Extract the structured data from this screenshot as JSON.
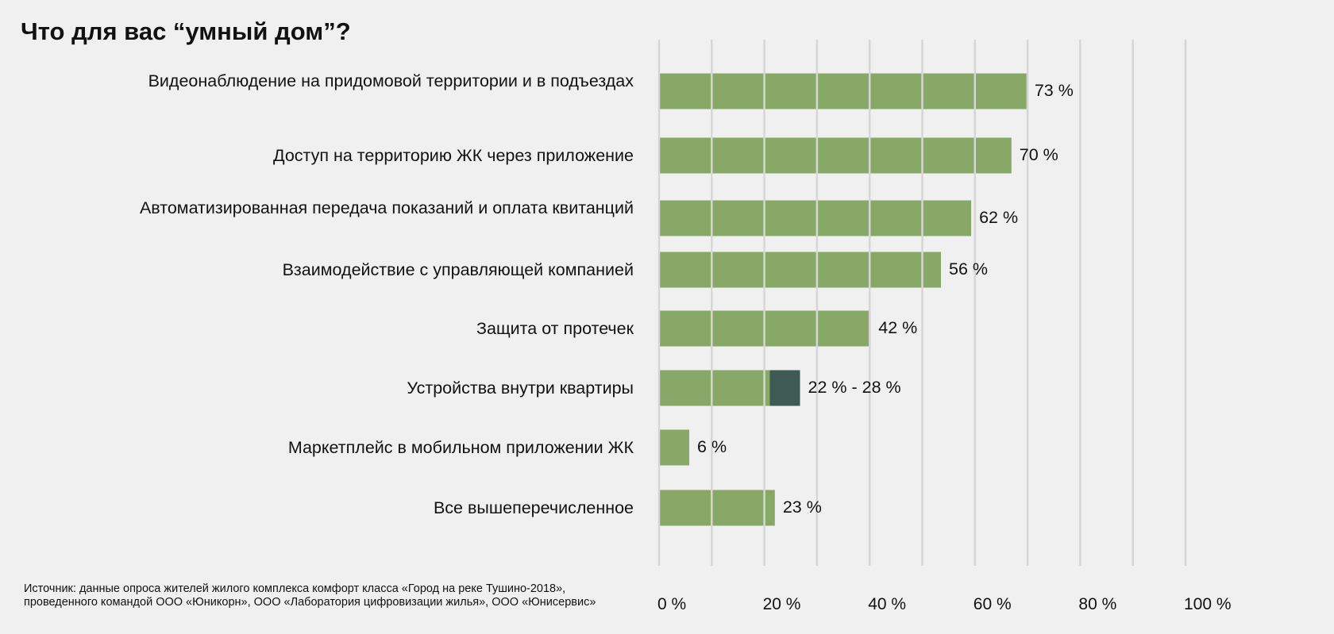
{
  "chart_data": {
    "type": "bar",
    "orientation": "horizontal",
    "title": "Что для вас “умный дом”?",
    "categories": [
      "Видеонаблюдение на придомовой территории и в подъездах",
      "Доступ на территорию ЖК через приложение",
      "Автоматизированная передача показаний и оплата квитанций",
      "Взаимодействие с управляющей компанией",
      "Защита от протечек",
      "Устройства внутри квартиры",
      "Маркетплейс в мобильном приложении ЖК",
      "Все вышеперечисленное"
    ],
    "values": [
      73,
      70,
      62,
      56,
      42,
      22,
      6,
      23
    ],
    "range_high": [
      null,
      null,
      null,
      null,
      null,
      28,
      null,
      null
    ],
    "value_labels": [
      "73 %",
      "70 %",
      "62 %",
      "56 %",
      "42 %",
      "22 % - 28 %",
      "6 %",
      "23 %"
    ],
    "x_ticks": [
      "0 %",
      "20 %",
      "40 %",
      "60 %",
      "80 %",
      "100 %"
    ],
    "xlim": [
      0,
      100
    ],
    "grid": true,
    "colors": {
      "bar": "#87a866",
      "range": "#3d5a54",
      "grid": "#d6d6d6",
      "background": "#f0f0f0"
    }
  },
  "source": "Источник: данные опроса жителей жилого комплекса комфорт класса «Город на реке Тушино-2018», проведенного командой ООО «Юникорн», ООО «Лаборатория цифровизации жилья», ООО «Юнисервис»"
}
